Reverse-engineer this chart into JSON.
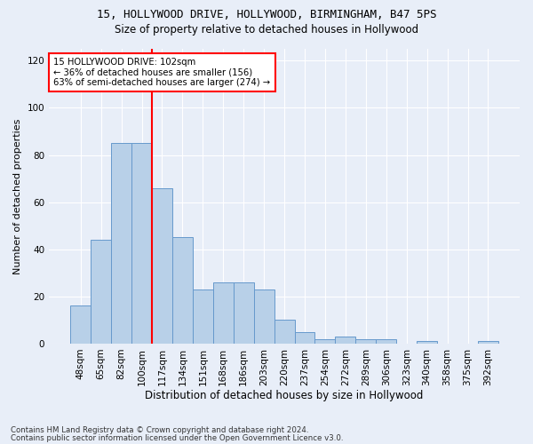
{
  "title1": "15, HOLLYWOOD DRIVE, HOLLYWOOD, BIRMINGHAM, B47 5PS",
  "title2": "Size of property relative to detached houses in Hollywood",
  "xlabel": "Distribution of detached houses by size in Hollywood",
  "ylabel": "Number of detached properties",
  "bar_labels": [
    "48sqm",
    "65sqm",
    "82sqm",
    "100sqm",
    "117sqm",
    "134sqm",
    "151sqm",
    "168sqm",
    "186sqm",
    "203sqm",
    "220sqm",
    "237sqm",
    "254sqm",
    "272sqm",
    "289sqm",
    "306sqm",
    "323sqm",
    "340sqm",
    "358sqm",
    "375sqm",
    "392sqm"
  ],
  "bar_heights": [
    16,
    44,
    85,
    85,
    66,
    45,
    23,
    26,
    26,
    23,
    10,
    5,
    2,
    3,
    2,
    2,
    0,
    1,
    0,
    0,
    1
  ],
  "bar_color": "#b8d0e8",
  "bar_edge_color": "#6699cc",
  "vline_x_index": 3,
  "vline_color": "red",
  "annotation_text": "15 HOLLYWOOD DRIVE: 102sqm\n← 36% of detached houses are smaller (156)\n63% of semi-detached houses are larger (274) →",
  "annotation_box_color": "white",
  "annotation_box_edge": "red",
  "ylim": [
    0,
    125
  ],
  "yticks": [
    0,
    20,
    40,
    60,
    80,
    100,
    120
  ],
  "footer1": "Contains HM Land Registry data © Crown copyright and database right 2024.",
  "footer2": "Contains public sector information licensed under the Open Government Licence v3.0.",
  "bg_color": "#e8eef8",
  "plot_bg_color": "#e8eef8"
}
